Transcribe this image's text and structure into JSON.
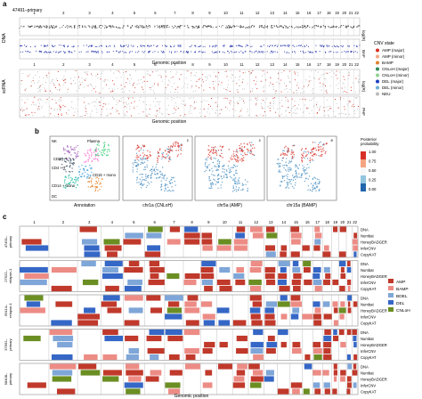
{
  "panel_a": {
    "letter": "a",
    "sample": "47491–primary",
    "chromosomes": [
      "1",
      "2",
      "3",
      "4",
      "5",
      "6",
      "7",
      "8",
      "9",
      "10",
      "11",
      "12",
      "13",
      "14",
      "15",
      "16",
      "17",
      "18",
      "19",
      "20",
      "21",
      "22"
    ],
    "chrom_weights": [
      249,
      243,
      198,
      190,
      181,
      171,
      159,
      145,
      138,
      134,
      135,
      133,
      114,
      107,
      102,
      90,
      83,
      80,
      59,
      64,
      47,
      51
    ],
    "dna_label": "DNA",
    "scrna_label": "scRNA",
    "axis_logr": "log(R)",
    "axis_baf": "BAF",
    "axis_phf": "PHF",
    "xlabel": "Genomic position",
    "legend_title": "CNV state",
    "legend": [
      {
        "label": "AMP (major)",
        "color": "#d73027"
      },
      {
        "label": "AMP (minor)",
        "color": "#f4a582"
      },
      {
        "label": "BAMP",
        "color": "#e08030"
      },
      {
        "label": "CNLoH (major)",
        "color": "#2e8b57"
      },
      {
        "label": "CNLoH (minor)",
        "color": "#8fd18f"
      },
      {
        "label": "DEL (major)",
        "color": "#1f3fbf"
      },
      {
        "label": "DEL (minor)",
        "color": "#6baed6"
      },
      {
        "label": "NEU",
        "color": "#bbbbbb"
      }
    ]
  },
  "panel_b": {
    "letter": "b",
    "cell_labels": [
      "NK",
      "Plasma",
      "CD8 + T",
      "CD4 + T",
      "CD16 + mono",
      "CD14 + mono",
      "DC"
    ],
    "plots": [
      {
        "caption": "Annotation",
        "corner": ""
      },
      {
        "caption": "chr1a (CNLoH)",
        "corner": "c"
      },
      {
        "caption": "chr5a (AMP)",
        "corner": "c"
      },
      {
        "caption": "chr15a (BAMP)",
        "corner": "e"
      }
    ],
    "colorbar_title": "Posterior\nprobability",
    "colorbar_ticks": [
      "1.00",
      "0.75",
      "0.50",
      "0.25",
      "0.00"
    ]
  },
  "panel_c": {
    "letter": "c",
    "xlabel": "Genomic position",
    "rows": [
      "DNA",
      "Numbat",
      "HoneyBADGER",
      "InferCNV",
      "CopyKAT"
    ],
    "samples": [
      {
        "name": "47491–\nprimary"
      },
      {
        "name": "27522–\nrelapse-1"
      },
      {
        "name": "59114–\nrelapse-1"
      },
      {
        "name": "37692–\nprimary"
      },
      {
        "name": "58408–\nprimary"
      }
    ],
    "legend": [
      {
        "label": "AMP",
        "color": "#c0392b"
      },
      {
        "label": "BAMP",
        "color": "#ec8c85"
      },
      {
        "label": "BDEL",
        "color": "#7fa6d8"
      },
      {
        "label": "DEL",
        "color": "#3567c6"
      },
      {
        "label": "CNLoH",
        "color": "#6b8e23"
      }
    ]
  }
}
